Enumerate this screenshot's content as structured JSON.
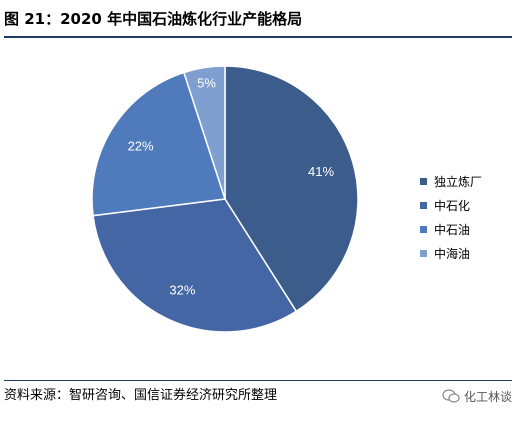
{
  "figure": {
    "title": "图 21：2020 年中国石油炼化行业产能格局",
    "source": "资料来源：智研咨询、国信证券经济研究所整理",
    "watermark": "化工林谈"
  },
  "chart_data": {
    "type": "pie",
    "title": "",
    "start_angle_deg": 90,
    "direction": "clockwise",
    "legend_position": "right",
    "slices": [
      {
        "label": "独立炼厂",
        "value": 41,
        "display": "41%",
        "color": "#3c5d8c"
      },
      {
        "label": "中石化",
        "value": 32,
        "display": "32%",
        "color": "#4566a4"
      },
      {
        "label": "中石油",
        "value": 22,
        "display": "22%",
        "color": "#4f7bbd"
      },
      {
        "label": "中海油",
        "value": 5,
        "display": "5%",
        "color": "#7e9fcf"
      }
    ]
  }
}
